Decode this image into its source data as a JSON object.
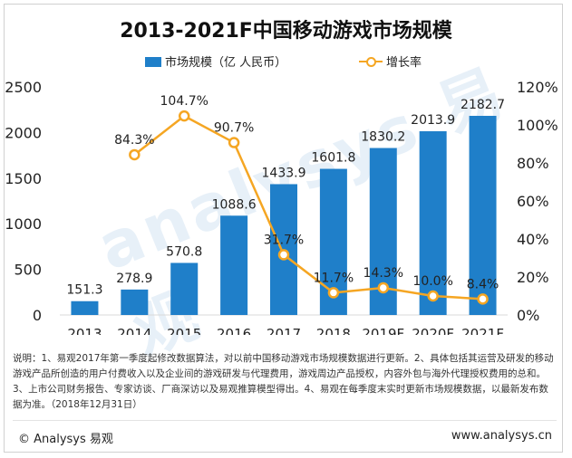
{
  "title": "2013-2021F中国移动游戏市场规模",
  "legend": {
    "bar_label": "市场规模（亿 人民币）",
    "line_label": "增长率"
  },
  "watermark": "analysys 易观",
  "note": "说明：1、易观2017年第一季度起修改数据算法，对以前中国移动游戏市场规模数据进行更新。2、具体包括其运营及研发的移动游戏产品所创造的用户付费收入以及企业间的游戏研发与代理费用，游戏周边产品授权，内容外包与海外代理授权费用的总和。3、上市公司财务报告、专家访谈、厂商深访以及易观推算模型得出。4、易观在每季度末实时更新市场规模数据，以最新发布数据为准。（2018年12月31日）",
  "footer": {
    "left": "© Analysys 易观",
    "right": "www.analysys.cn"
  },
  "colors": {
    "bar": "#1f7fc9",
    "line": "#f5a623",
    "axis": "#d9d9d9"
  },
  "chart_data": {
    "type": "bar",
    "categories": [
      "2013",
      "2014",
      "2015",
      "2016",
      "2017",
      "2018",
      "2019F",
      "2020F",
      "2021F"
    ],
    "series": [
      {
        "name": "市场规模（亿 人民币）",
        "type": "bar",
        "axis": "left",
        "values": [
          151.3,
          278.9,
          570.8,
          1088.6,
          1433.9,
          1601.8,
          1830.2,
          2013.9,
          2182.7
        ],
        "labels": [
          "151.3",
          "278.9",
          "570.8",
          "1088.6",
          "1433.9",
          "1601.8",
          "1830.2",
          "2013.9",
          "2182.7"
        ]
      },
      {
        "name": "增长率",
        "type": "line",
        "axis": "right",
        "values": [
          null,
          84.3,
          104.7,
          90.7,
          31.7,
          11.7,
          14.3,
          10.0,
          8.4
        ],
        "labels": [
          "",
          "84.3%",
          "104.7%",
          "90.7%",
          "31.7%",
          "11.7%",
          "14.3%",
          "10.0%",
          "8.4%"
        ]
      }
    ],
    "y_left": {
      "min": 0,
      "max": 2500,
      "ticks": [
        "0",
        "500",
        "1000",
        "1500",
        "2000",
        "2500"
      ]
    },
    "y_right": {
      "min": 0,
      "max": 120,
      "ticks": [
        "0%",
        "20%",
        "40%",
        "60%",
        "80%",
        "100%",
        "120%"
      ]
    },
    "grid": false,
    "legend_position": "top"
  }
}
